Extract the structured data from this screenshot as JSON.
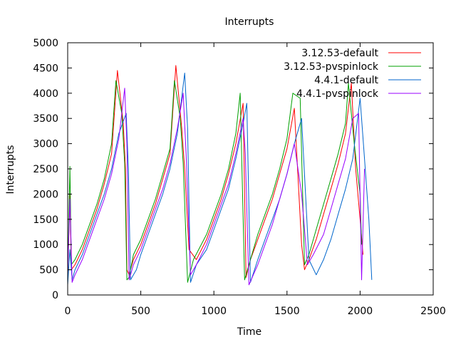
{
  "chart_data": {
    "type": "line",
    "title": "Interrupts",
    "xlabel": "Time",
    "ylabel": "Interrupts",
    "xlim": [
      0,
      2500
    ],
    "ylim": [
      0,
      5000
    ],
    "xticks": [
      0,
      500,
      1000,
      1500,
      2000,
      2500
    ],
    "yticks": [
      0,
      500,
      1000,
      1500,
      2000,
      2500,
      3000,
      3500,
      4000,
      4500,
      5000
    ],
    "grid": false,
    "legend_position": "top-right",
    "series": [
      {
        "name": "3.12.53-default",
        "color": "#ff0000",
        "x": [
          0,
          15,
          25,
          50,
          100,
          150,
          200,
          250,
          300,
          340,
          380,
          395,
          405,
          420,
          450,
          500,
          550,
          600,
          650,
          700,
          740,
          780,
          800,
          830,
          880,
          950,
          1000,
          1050,
          1100,
          1150,
          1200,
          1220,
          1250,
          1300,
          1350,
          1400,
          1450,
          1500,
          1550,
          1600,
          1620,
          1650,
          1700,
          1750,
          1800,
          1850,
          1900,
          1940,
          1970,
          2000,
          2020
        ],
        "values": [
          400,
          2000,
          500,
          600,
          900,
          1300,
          1700,
          2200,
          2800,
          4450,
          3400,
          2500,
          500,
          400,
          700,
          1000,
          1400,
          1800,
          2300,
          2800,
          4550,
          3300,
          2500,
          900,
          700,
          1100,
          1500,
          1900,
          2400,
          3000,
          3800,
          350,
          700,
          1100,
          1500,
          1900,
          2400,
          2900,
          3700,
          1000,
          500,
          700,
          1100,
          1600,
          2100,
          2600,
          3200,
          4200,
          2500,
          1500,
          800
        ]
      },
      {
        "name": "3.12.53-pvspinlock",
        "color": "#00a000",
        "x": [
          0,
          15,
          25,
          50,
          100,
          150,
          200,
          250,
          300,
          330,
          370,
          390,
          405,
          420,
          450,
          500,
          550,
          600,
          650,
          700,
          730,
          770,
          790,
          820,
          860,
          950,
          1000,
          1050,
          1100,
          1150,
          1180,
          1210,
          1240,
          1300,
          1350,
          1400,
          1450,
          1500,
          1540,
          1590,
          1620,
          1650,
          1700,
          1750,
          1800,
          1850,
          1900,
          1920,
          1960,
          2000,
          2010
        ],
        "values": [
          300,
          2550,
          600,
          700,
          1000,
          1400,
          1800,
          2300,
          3000,
          4250,
          3600,
          2600,
          300,
          350,
          800,
          1100,
          1500,
          1900,
          2400,
          2900,
          4250,
          3500,
          2600,
          250,
          700,
          1200,
          1600,
          2000,
          2500,
          3200,
          4000,
          300,
          600,
          1200,
          1600,
          2000,
          2500,
          3100,
          4000,
          3900,
          600,
          800,
          1300,
          1800,
          2300,
          2800,
          3400,
          4200,
          3000,
          2000,
          1000
        ]
      },
      {
        "name": "4.4.1-default",
        "color": "#0066cc",
        "x": [
          0,
          15,
          30,
          50,
          100,
          150,
          200,
          250,
          300,
          350,
          400,
          415,
          430,
          470,
          500,
          550,
          600,
          650,
          700,
          750,
          800,
          820,
          840,
          880,
          950,
          1000,
          1050,
          1100,
          1150,
          1200,
          1225,
          1250,
          1300,
          1350,
          1400,
          1450,
          1500,
          1550,
          1600,
          1650,
          1700,
          1750,
          1800,
          1850,
          1900,
          1950,
          2000,
          2030,
          2060,
          2080
        ],
        "values": [
          200,
          900,
          300,
          500,
          800,
          1200,
          1600,
          2000,
          2500,
          3200,
          3600,
          2500,
          300,
          500,
          800,
          1200,
          1600,
          2000,
          2500,
          3200,
          4400,
          3300,
          250,
          600,
          900,
          1300,
          1700,
          2100,
          2700,
          3400,
          3800,
          250,
          700,
          1100,
          1500,
          1900,
          2400,
          3000,
          3500,
          700,
          400,
          700,
          1100,
          1600,
          2100,
          2700,
          3900,
          2700,
          1500,
          300
        ]
      },
      {
        "name": "4.4.1-pvspinlock",
        "color": "#9900ff",
        "x": [
          0,
          15,
          30,
          50,
          100,
          150,
          200,
          250,
          300,
          350,
          390,
          405,
          420,
          450,
          500,
          550,
          600,
          650,
          700,
          750,
          790,
          810,
          840,
          880,
          950,
          1000,
          1050,
          1100,
          1150,
          1200,
          1215,
          1240,
          1300,
          1350,
          1400,
          1450,
          1500,
          1550,
          1600,
          1640,
          1680,
          1750,
          1800,
          1850,
          1900,
          1950,
          1990,
          2010,
          2030
        ],
        "values": [
          400,
          1900,
          250,
          400,
          700,
          1100,
          1500,
          1900,
          2400,
          3100,
          4100,
          3000,
          300,
          600,
          900,
          1300,
          1700,
          2100,
          2600,
          3300,
          4000,
          2800,
          400,
          600,
          1000,
          1400,
          1800,
          2200,
          2800,
          3500,
          2800,
          200,
          600,
          1000,
          1400,
          1900,
          2400,
          3000,
          2000,
          600,
          800,
          1200,
          1700,
          2200,
          2700,
          3500,
          3600,
          300,
          2500
        ]
      }
    ]
  }
}
